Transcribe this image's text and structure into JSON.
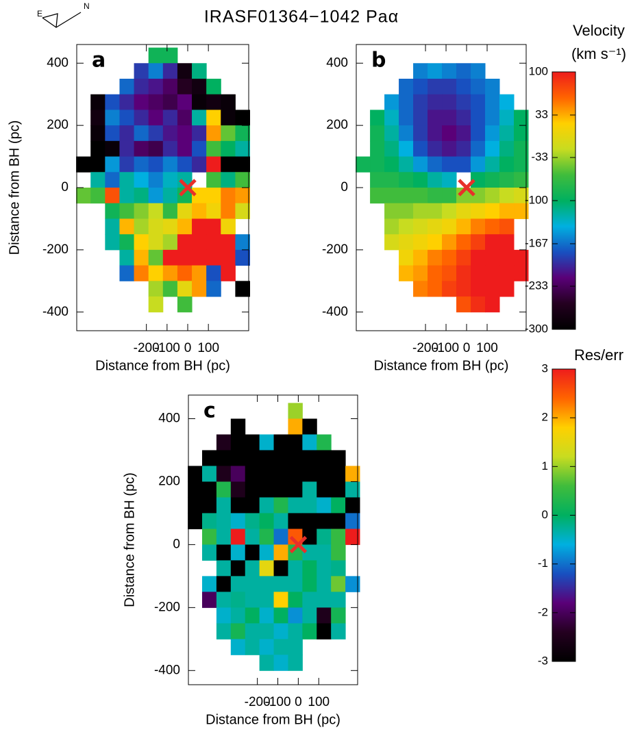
{
  "title": "IRASF01364−1042 Paα",
  "compass": {
    "east": "E",
    "north": "N"
  },
  "colormap": [
    "#000000",
    "#240020",
    "#5a0078",
    "#1850c0",
    "#00b0e0",
    "#00b060",
    "#40bc3c",
    "#c8dc20",
    "#ffd000",
    "#ff6400",
    "#ee1c1c"
  ],
  "colorbars": [
    {
      "title": "Velocity",
      "unit": "(km s⁻¹)",
      "zlim": [
        -300,
        100
      ],
      "ticks": [
        100,
        33,
        -33,
        -100,
        -167,
        -233,
        -300
      ]
    },
    {
      "title": "Res/err",
      "zlim": [
        -3,
        3
      ],
      "ticks": [
        3,
        2,
        1,
        0,
        -1,
        -2,
        -3
      ]
    }
  ],
  "chart_data": [
    {
      "type": "heatmap",
      "label": "a",
      "x_label": "Distance from BH (pc)",
      "y_label": "Distance from BH (pc)",
      "xlim": [
        -537,
        295
      ],
      "ylim": [
        -460,
        460
      ],
      "xticks": [
        -200,
        -100,
        0,
        100
      ],
      "yticks": [
        400,
        200,
        0,
        -200,
        -400
      ],
      "zlim": [
        -300,
        100
      ],
      "marker": {
        "x": 0,
        "y": 0,
        "color": "#e8302a"
      },
      "x": [
        -505,
        -435,
        -365,
        -295,
        -225,
        -155,
        -85,
        -15,
        55,
        125,
        195,
        265
      ],
      "y": [
        425,
        375,
        325,
        275,
        225,
        175,
        125,
        75,
        25,
        -25,
        -75,
        -125,
        -175,
        -225,
        -275,
        -325,
        -375,
        -425
      ],
      "z": [
        [
          null,
          null,
          null,
          null,
          null,
          -90,
          -90,
          null,
          null,
          null,
          null,
          null
        ],
        [
          null,
          null,
          null,
          null,
          -190,
          -160,
          -200,
          -280,
          -110,
          null,
          null,
          null
        ],
        [
          null,
          null,
          null,
          -170,
          -200,
          -210,
          -230,
          -260,
          -280,
          -100,
          null,
          null
        ],
        [
          null,
          -290,
          -180,
          -200,
          -220,
          -230,
          -240,
          -220,
          -290,
          -280,
          -290,
          null
        ],
        [
          null,
          -280,
          -160,
          -180,
          -200,
          -220,
          -200,
          -230,
          -120,
          20,
          -290,
          -300
        ],
        [
          null,
          -290,
          -180,
          -200,
          -170,
          -190,
          -210,
          -220,
          -200,
          40,
          -50,
          -90
        ],
        [
          null,
          -300,
          -290,
          -200,
          -230,
          -240,
          -200,
          -220,
          -180,
          -60,
          -100,
          -120
        ],
        [
          -300,
          -300,
          -150,
          -190,
          -170,
          -180,
          -160,
          -180,
          -200,
          100,
          -300,
          -300
        ],
        [
          null,
          -120,
          -170,
          -120,
          -140,
          -160,
          -130,
          -120,
          null,
          -60,
          -110,
          -60
        ],
        [
          -50,
          -60,
          70,
          -120,
          -110,
          -150,
          -120,
          -90,
          20,
          20,
          50,
          40
        ],
        [
          null,
          null,
          -90,
          -60,
          -40,
          -20,
          -70,
          0,
          30,
          10,
          50,
          -10
        ],
        [
          null,
          null,
          -120,
          30,
          -30,
          -10,
          0,
          30,
          100,
          100,
          10,
          null
        ],
        [
          null,
          null,
          -120,
          -90,
          20,
          -10,
          -30,
          100,
          100,
          100,
          100,
          -160
        ],
        [
          null,
          null,
          null,
          -120,
          30,
          -50,
          100,
          100,
          100,
          100,
          100,
          -180
        ],
        [
          null,
          null,
          null,
          -170,
          50,
          20,
          40,
          60,
          40,
          -180,
          100,
          null
        ],
        [
          null,
          null,
          null,
          null,
          null,
          -30,
          -60,
          0,
          40,
          -170,
          null,
          -300
        ],
        [
          null,
          null,
          null,
          null,
          null,
          -20,
          null,
          -60,
          null,
          null,
          null,
          null
        ],
        [
          null,
          null,
          null,
          null,
          null,
          null,
          null,
          null,
          null,
          null,
          null,
          null
        ]
      ]
    },
    {
      "type": "heatmap",
      "label": "b",
      "x_label": "Distance from BH (pc)",
      "xlim": [
        -537,
        290
      ],
      "ylim": [
        -460,
        460
      ],
      "xticks": [
        -200,
        -100,
        0,
        100
      ],
      "yticks": [
        400,
        200,
        0,
        -200,
        -400
      ],
      "zlim": [
        -300,
        100
      ],
      "marker": {
        "x": 0,
        "y": 0,
        "color": "#e8302a"
      },
      "x": [
        -505,
        -435,
        -365,
        -295,
        -225,
        -155,
        -85,
        -15,
        55,
        125,
        195,
        265
      ],
      "y": [
        425,
        375,
        325,
        275,
        225,
        175,
        125,
        75,
        25,
        -25,
        -75,
        -125,
        -175,
        -225,
        -275,
        -325,
        -375,
        -425
      ],
      "z": [
        [
          null,
          null,
          null,
          null,
          null,
          null,
          null,
          null,
          null,
          null,
          null,
          null
        ],
        [
          null,
          null,
          null,
          null,
          -160,
          -150,
          -160,
          -170,
          -160,
          null,
          null,
          null
        ],
        [
          null,
          null,
          null,
          -170,
          -180,
          -190,
          -190,
          -180,
          -170,
          -160,
          null,
          null
        ],
        [
          null,
          null,
          -150,
          -170,
          -190,
          -200,
          -200,
          -190,
          -180,
          -160,
          -140,
          null
        ],
        [
          null,
          -100,
          -130,
          -170,
          -190,
          -210,
          -210,
          -200,
          -180,
          -160,
          -130,
          -100
        ],
        [
          null,
          -90,
          -120,
          -160,
          -190,
          -210,
          -220,
          -210,
          -180,
          -150,
          -120,
          -100
        ],
        [
          null,
          -90,
          -110,
          -140,
          -180,
          -200,
          -210,
          -200,
          -170,
          -140,
          -110,
          -90
        ],
        [
          -90,
          -90,
          -100,
          -120,
          -150,
          -170,
          -180,
          -180,
          -150,
          -120,
          -100,
          -90
        ],
        [
          null,
          -80,
          -80,
          -90,
          -100,
          -120,
          -130,
          null,
          -100,
          -90,
          -80,
          -70
        ],
        [
          null,
          -60,
          -60,
          -60,
          -60,
          -70,
          -70,
          -40,
          -40,
          -30,
          -20,
          -10
        ],
        [
          null,
          null,
          -40,
          -40,
          -30,
          -30,
          -20,
          0,
          10,
          20,
          30,
          30
        ],
        [
          null,
          null,
          -30,
          -20,
          -10,
          0,
          10,
          30,
          50,
          60,
          70,
          null
        ],
        [
          null,
          null,
          -10,
          0,
          10,
          20,
          40,
          60,
          80,
          100,
          100,
          null
        ],
        [
          null,
          null,
          null,
          10,
          30,
          50,
          60,
          80,
          100,
          100,
          100,
          100
        ],
        [
          null,
          null,
          null,
          30,
          40,
          60,
          70,
          90,
          100,
          100,
          100,
          100
        ],
        [
          null,
          null,
          null,
          null,
          50,
          60,
          80,
          90,
          100,
          100,
          100,
          null
        ],
        [
          null,
          null,
          null,
          null,
          null,
          null,
          null,
          70,
          90,
          100,
          null,
          null
        ],
        [
          null,
          null,
          null,
          null,
          null,
          null,
          null,
          null,
          null,
          null,
          null,
          null
        ]
      ]
    },
    {
      "type": "heatmap",
      "label": "c",
      "x_label": "Distance from BH (pc)",
      "y_label": "Distance from BH (pc)",
      "xlim": [
        -537,
        290
      ],
      "ylim": [
        -445,
        475
      ],
      "xticks": [
        -200,
        -100,
        0,
        100
      ],
      "yticks": [
        400,
        200,
        0,
        -200,
        -400
      ],
      "zlim": [
        -3,
        3
      ],
      "marker": {
        "x": 0,
        "y": 0,
        "color": "#e8302a"
      },
      "x": [
        -505,
        -435,
        -365,
        -295,
        -225,
        -155,
        -85,
        -15,
        55,
        125,
        195,
        265
      ],
      "y": [
        425,
        375,
        325,
        275,
        225,
        175,
        125,
        75,
        25,
        -25,
        -75,
        -125,
        -175,
        -225,
        -275,
        -325,
        -375,
        -425
      ],
      "z": [
        [
          null,
          null,
          null,
          null,
          null,
          null,
          null,
          1,
          null,
          null,
          null,
          null
        ],
        [
          null,
          null,
          null,
          -3,
          null,
          null,
          null,
          2,
          -3,
          null,
          null,
          null
        ],
        [
          null,
          null,
          -2.5,
          -3,
          -3,
          -0.5,
          -3,
          -3,
          -0.5,
          0.3,
          null,
          null
        ],
        [
          null,
          -3,
          -3,
          -3,
          -3,
          -3,
          -3,
          -3,
          -3,
          -3,
          -3,
          null
        ],
        [
          -3,
          -0.3,
          -2.5,
          -2,
          -3,
          -3,
          -3,
          -3,
          -3,
          -3,
          -3,
          2
        ],
        [
          -3,
          -3,
          0.3,
          -2.5,
          -3,
          -3,
          -3,
          -3,
          -0.3,
          -3,
          -3,
          -0.3
        ],
        [
          -3,
          -3,
          -0.3,
          -3,
          -3,
          -0.3,
          0.3,
          -0.3,
          -0.3,
          -0.5,
          0,
          -3
        ],
        [
          -3,
          -0.2,
          -0.3,
          -0.5,
          -0.2,
          0,
          -0.3,
          -3,
          -3,
          -3,
          -3,
          -1
        ],
        [
          null,
          0.5,
          -0.3,
          3,
          -0.3,
          0.3,
          -1,
          2.5,
          -3,
          -0.2,
          0.5,
          3
        ],
        [
          null,
          -0.3,
          -3,
          -0.5,
          -3,
          -0.5,
          2,
          0.3,
          -0.3,
          -0.3,
          0.5,
          null
        ],
        [
          null,
          null,
          -0.3,
          -3,
          -0.3,
          1.5,
          -3,
          -0.3,
          0,
          -0.3,
          -0.2,
          null
        ],
        [
          null,
          -0.5,
          -3,
          -0.3,
          -0.3,
          -0.3,
          -0.3,
          -0.3,
          0,
          -0.3,
          0.8,
          -0.8
        ],
        [
          null,
          -2,
          -0.3,
          -0.2,
          -0.3,
          -0.3,
          1.8,
          0,
          -0.3,
          -0.3,
          -0.3,
          null
        ],
        [
          null,
          null,
          -0.5,
          -0.3,
          0,
          -0.5,
          0,
          -0.8,
          -0.3,
          -2.5,
          0.2,
          null
        ],
        [
          null,
          null,
          -0.3,
          0.2,
          -0.3,
          -0.3,
          -0.5,
          -0.3,
          0,
          -3,
          -0.3,
          null
        ],
        [
          null,
          null,
          null,
          -0.5,
          -0.3,
          -0.5,
          -0.3,
          -0.3,
          null,
          null,
          null,
          null
        ],
        [
          null,
          null,
          null,
          null,
          null,
          -0.3,
          -0.5,
          -0.3,
          null,
          null,
          null,
          null
        ],
        [
          null,
          null,
          null,
          null,
          null,
          null,
          null,
          null,
          null,
          null,
          null,
          null
        ]
      ]
    }
  ]
}
